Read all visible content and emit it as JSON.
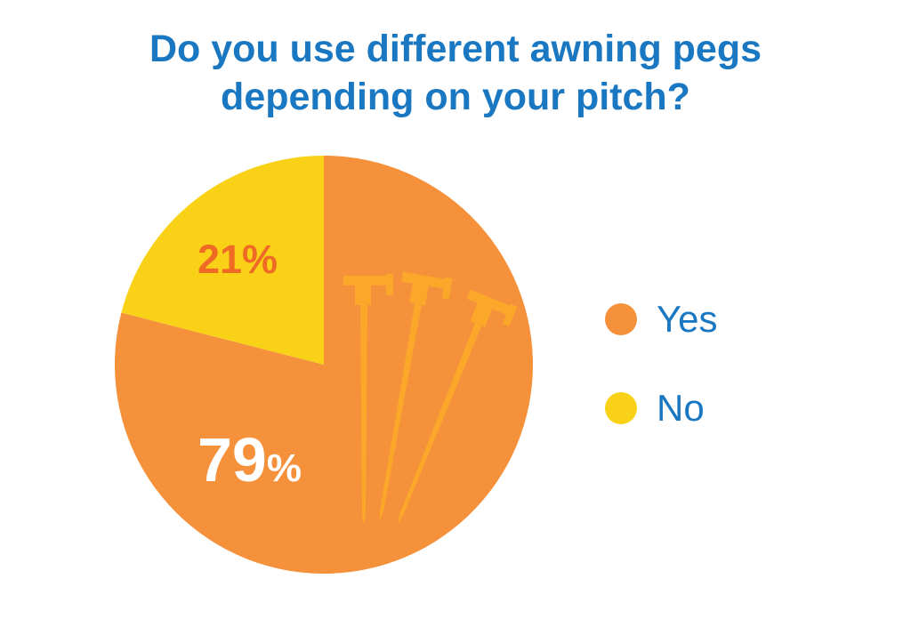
{
  "chart_data": {
    "type": "pie",
    "title_lines": [
      "Do you use different awning pegs",
      "depending on your pitch?"
    ],
    "slices": [
      {
        "label": "Yes",
        "value": 79,
        "value_label": "79",
        "color": "#f5913a",
        "label_color": "#ffffff"
      },
      {
        "label": "No",
        "value": 21,
        "value_label": "21%",
        "color": "#f9d117",
        "label_color": "#ef6a24"
      }
    ],
    "percent_suffix": "%",
    "legend_position": "right",
    "icon": "awning-peg-icon"
  }
}
